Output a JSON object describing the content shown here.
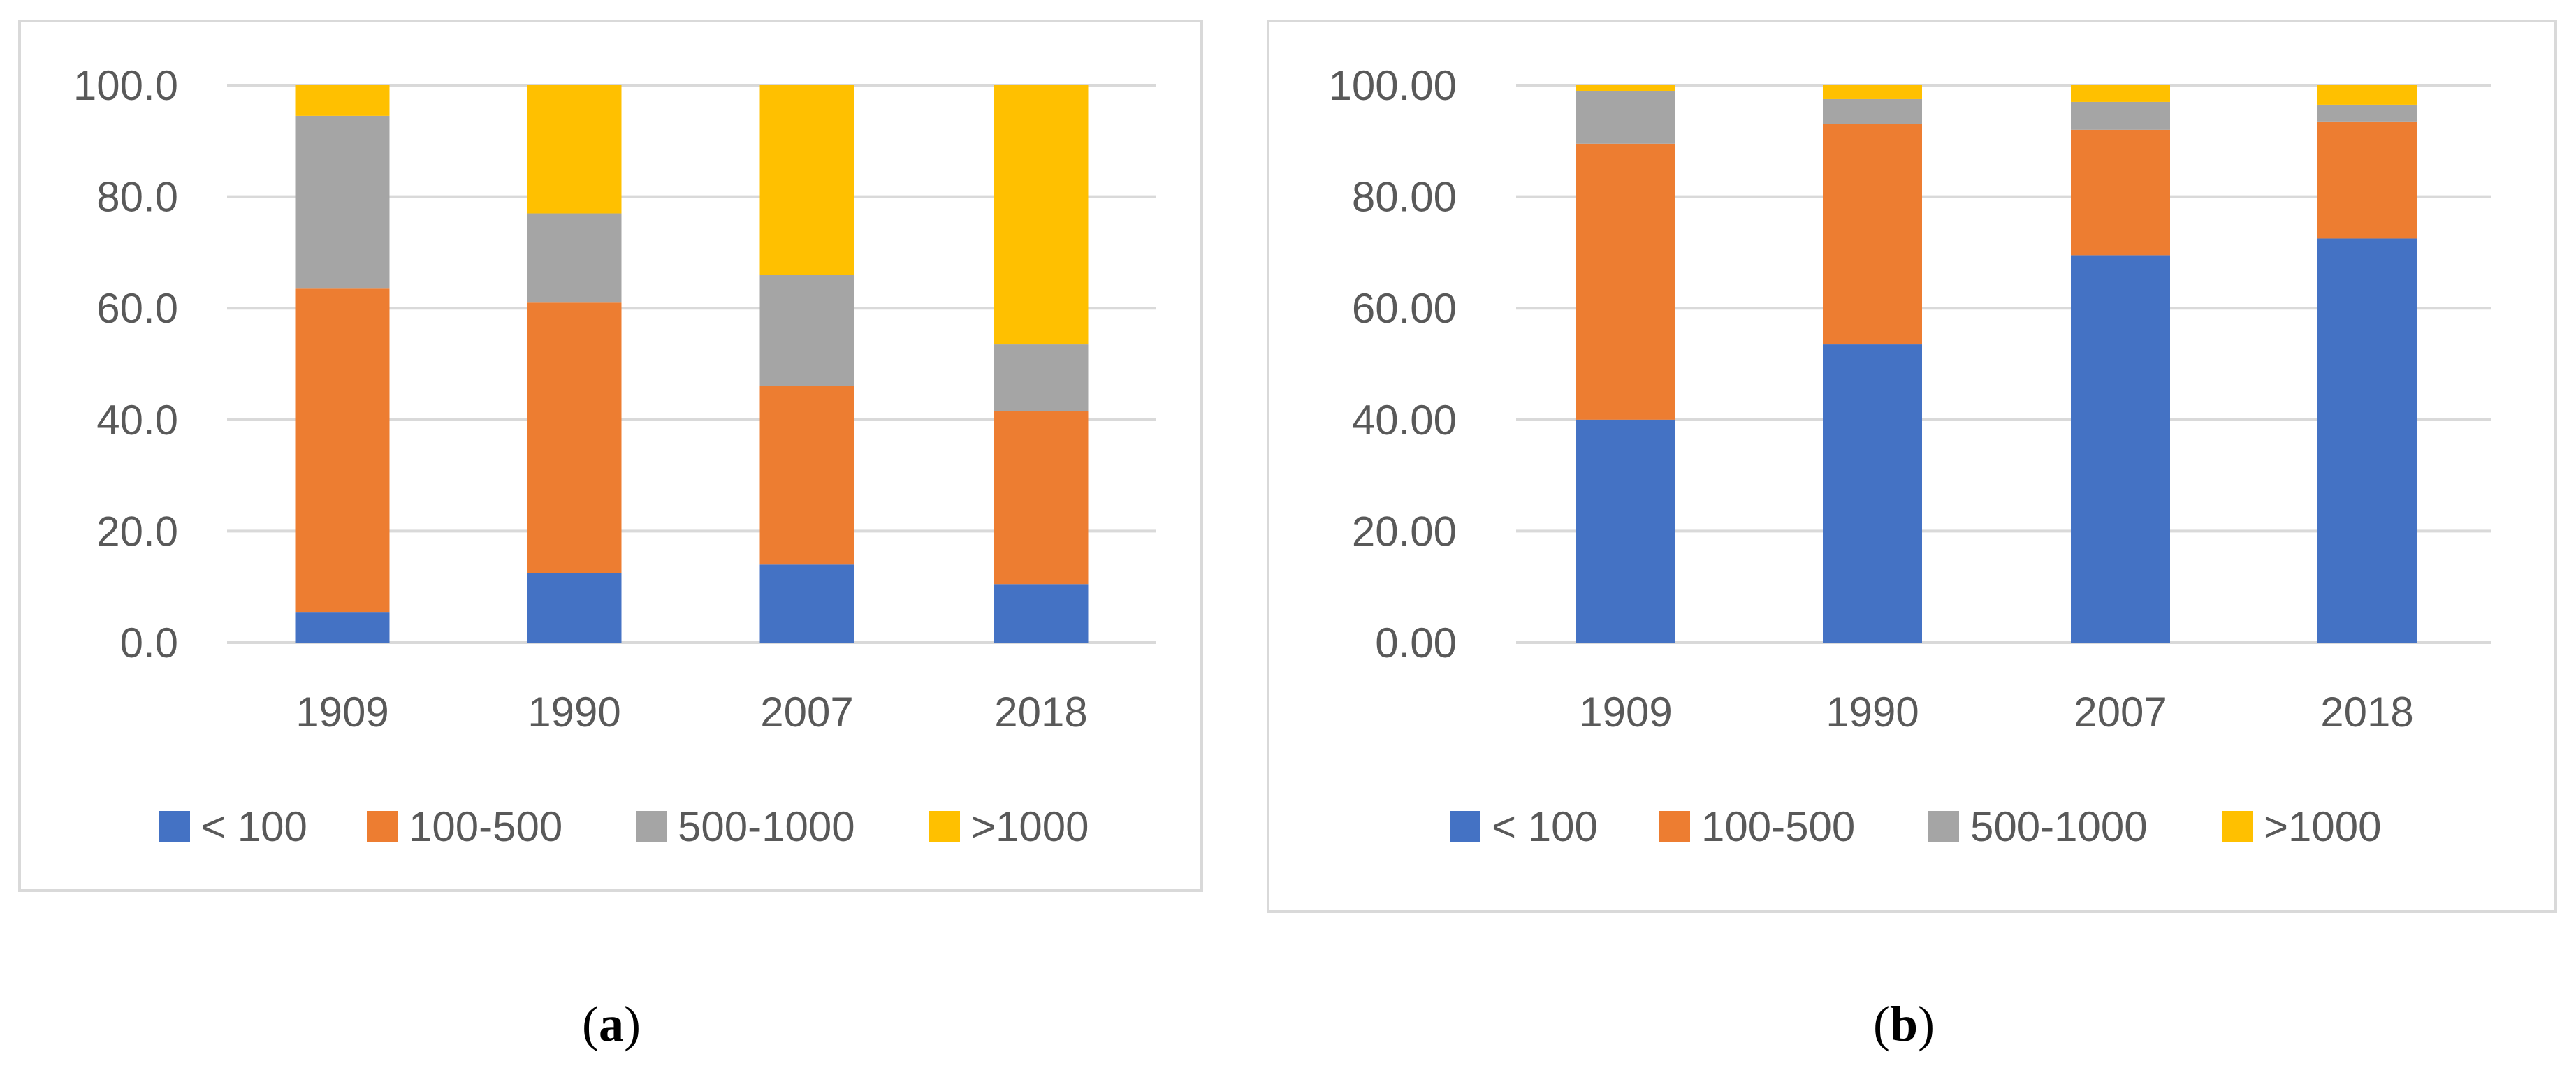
{
  "chart_data": [
    {
      "id": "a",
      "type": "bar",
      "stacked": true,
      "caption_letter": "a",
      "categories": [
        "1909",
        "1990",
        "2007",
        "2018"
      ],
      "series": [
        {
          "name": "< 100",
          "color": "#4472c4",
          "values": [
            5.5,
            12.5,
            14.0,
            10.5
          ]
        },
        {
          "name": "100-500",
          "color": "#ed7d31",
          "values": [
            58.0,
            48.5,
            32.0,
            31.0
          ]
        },
        {
          "name": "500-1000",
          "color": "#a5a5a5",
          "values": [
            31.0,
            16.0,
            20.0,
            12.0
          ]
        },
        {
          "name": ">1000",
          "color": "#ffc000",
          "values": [
            5.5,
            23.0,
            34.0,
            46.5
          ]
        }
      ],
      "ylim": [
        0,
        100
      ],
      "yticks": [
        "0.0",
        "20.0",
        "40.0",
        "60.0",
        "80.0",
        "100.0"
      ],
      "grid": true,
      "legend": "bottom",
      "title": "",
      "xlabel": "",
      "ylabel": ""
    },
    {
      "id": "b",
      "type": "bar",
      "stacked": true,
      "caption_letter": "b",
      "categories": [
        "1909",
        "1990",
        "2007",
        "2018"
      ],
      "series": [
        {
          "name": "< 100",
          "color": "#4472c4",
          "values": [
            40.0,
            53.5,
            69.5,
            72.5
          ]
        },
        {
          "name": "100-500",
          "color": "#ed7d31",
          "values": [
            49.5,
            39.5,
            22.5,
            21.0
          ]
        },
        {
          "name": "500-1000",
          "color": "#a5a5a5",
          "values": [
            9.5,
            4.5,
            5.0,
            3.0
          ]
        },
        {
          "name": ">1000",
          "color": "#ffc000",
          "values": [
            1.0,
            2.5,
            3.0,
            3.5
          ]
        }
      ],
      "ylim": [
        0,
        100
      ],
      "yticks": [
        "0.00",
        "20.00",
        "40.00",
        "60.00",
        "80.00",
        "100.00"
      ],
      "grid": true,
      "legend": "bottom",
      "title": "",
      "xlabel": "",
      "ylabel": ""
    }
  ]
}
